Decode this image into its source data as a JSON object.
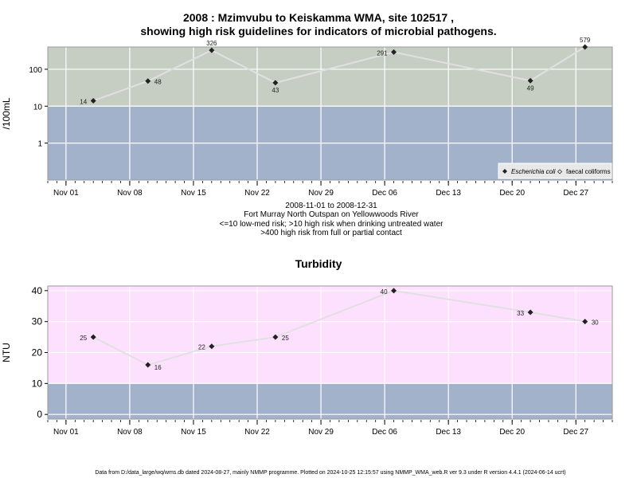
{
  "top_title_line1": "2008 : Mzimvubu to Keiskamma WMA, site 102517 ,",
  "top_title_line2": "showing high risk guidelines for indicators of microbial pathogens.",
  "caption": {
    "line1": "2008-11-01 to 2008-12-31",
    "line2": "Fort Murray North Outspan on Yellowwoods River",
    "line3": "<=10 low-med risk; >10 high risk when drinking untreated water",
    "line4": ">400 high risk from full or partial contact"
  },
  "footer": "Data from D:/data_large/wq/wms.db dated 2024-08-27, mainly NMMP programme. Plotted on 2024-10-25 12:15:57 using NMMP_WMA_web.R ver 9.3 under R version 4.4.1 (2024-06-14 ucrt)",
  "colors": {
    "low_band": "#a2b2cb",
    "high_band": "#c6cec3",
    "very_high_band": "#fef9c0",
    "turbidity_band": "#fde0fd",
    "line": "#e0e0e0",
    "marker": "#222222",
    "grid": "#ffffff"
  },
  "chart_data": [
    {
      "type": "line",
      "title": "",
      "ylabel": "/100mL",
      "yscale": "log",
      "y_ticks": [
        1,
        10,
        100
      ],
      "y_tick_labels": [
        "1",
        "10",
        "100"
      ],
      "x_tick_labels": [
        "Nov 01",
        "Nov 08",
        "Nov 15",
        "Nov 22",
        "Nov 29",
        "Dec 06",
        "Dec 13",
        "Dec 20",
        "Dec 27"
      ],
      "x_ticks": [
        "2008-11-01",
        "2008-11-08",
        "2008-11-15",
        "2008-11-22",
        "2008-11-29",
        "2008-12-06",
        "2008-12-13",
        "2008-12-20",
        "2008-12-27"
      ],
      "xlim": [
        "2008-10-30",
        "2008-12-31"
      ],
      "ylim": [
        0.1,
        400
      ],
      "bands": [
        {
          "from": 0.1,
          "to": 10,
          "color": "#a2b2cb"
        },
        {
          "from": 10,
          "to": 400,
          "color": "#c6cec3"
        },
        {
          "from": 400,
          "to": 700,
          "color": "#fef9c0"
        }
      ],
      "series": [
        {
          "name": "Escherichia coli",
          "x": [
            "2008-11-04",
            "2008-11-10",
            "2008-11-17",
            "2008-11-24",
            "2008-12-07",
            "2008-12-22",
            "2008-12-28"
          ],
          "values": [
            14,
            48,
            326,
            43,
            291,
            49,
            579
          ],
          "labels": [
            "14",
            "48",
            "326",
            "43",
            "291",
            "49",
            "579"
          ]
        }
      ],
      "legend": {
        "position": "bottom-right",
        "items": [
          {
            "label": "Escherichia coli",
            "marker": "filled-diamond"
          },
          {
            "label": "faecal coliforms",
            "marker": "open-diamond"
          }
        ]
      }
    },
    {
      "type": "line",
      "title": "Turbidity",
      "ylabel": "NTU",
      "y_ticks": [
        0,
        10,
        20,
        30,
        40
      ],
      "y_tick_labels": [
        "0",
        "10",
        "20",
        "30",
        "40"
      ],
      "x_tick_labels": [
        "Nov 01",
        "Nov 08",
        "Nov 15",
        "Nov 22",
        "Nov 29",
        "Dec 06",
        "Dec 13",
        "Dec 20",
        "Dec 27"
      ],
      "x_ticks": [
        "2008-11-01",
        "2008-11-08",
        "2008-11-15",
        "2008-11-22",
        "2008-11-29",
        "2008-12-06",
        "2008-12-13",
        "2008-12-20",
        "2008-12-27"
      ],
      "xlim": [
        "2008-10-30",
        "2008-12-31"
      ],
      "ylim": [
        -1.5,
        41.5
      ],
      "bands": [
        {
          "from": -1.5,
          "to": 10,
          "color": "#a2b2cb"
        },
        {
          "from": 10,
          "to": 41.5,
          "color": "#fde0fd"
        }
      ],
      "series": [
        {
          "x": [
            "2008-11-04",
            "2008-11-10",
            "2008-11-17",
            "2008-11-24",
            "2008-12-07",
            "2008-12-22",
            "2008-12-28"
          ],
          "values": [
            25,
            16,
            22,
            25,
            40,
            33,
            30
          ],
          "labels": [
            "25",
            "16",
            "22",
            "25",
            "40",
            "33",
            "30"
          ]
        }
      ]
    }
  ]
}
